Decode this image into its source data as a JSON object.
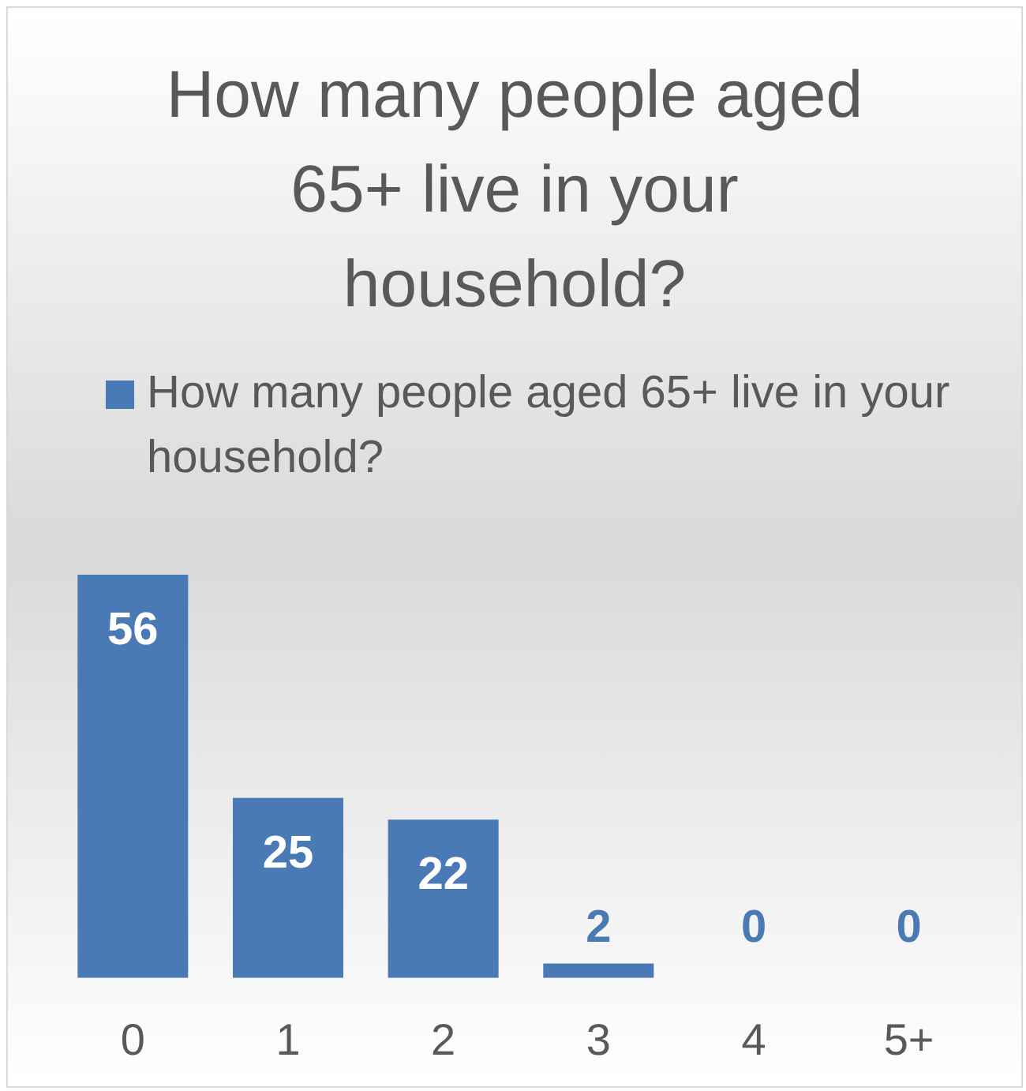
{
  "chart_data": {
    "type": "bar",
    "title": "How many people aged 65+ live in your household?",
    "categories": [
      "0",
      "1",
      "2",
      "3",
      "4",
      "5+"
    ],
    "series": [
      {
        "name": "How many people aged 65+ live in your household?",
        "color": "#4a7ab5",
        "values": [
          56,
          25,
          22,
          2,
          0,
          0
        ]
      }
    ],
    "data_labels": true,
    "legend": "top"
  }
}
